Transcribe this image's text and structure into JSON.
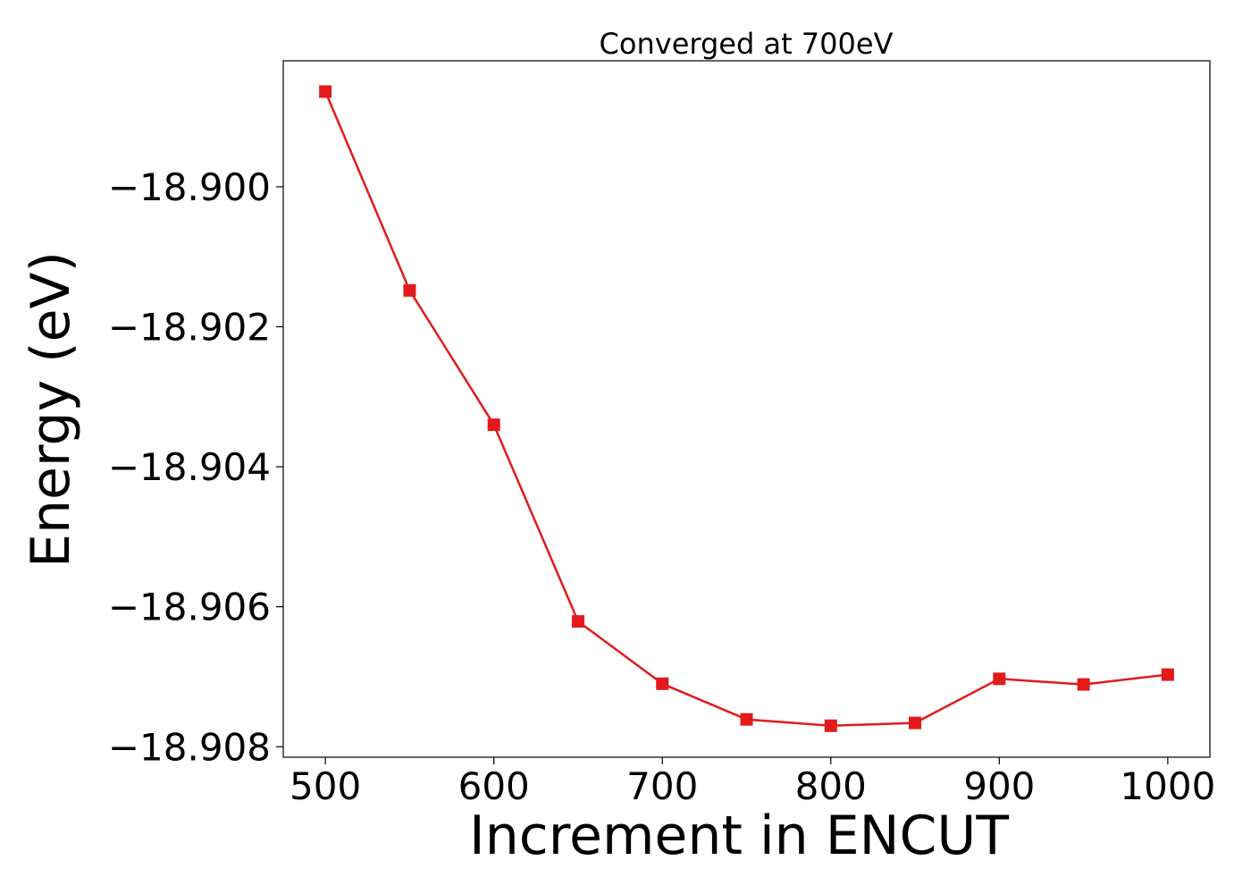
{
  "chart_data": {
    "type": "line",
    "title": "Converged at 700eV",
    "xlabel": "Increment in ENCUT",
    "ylabel": "Energy (eV)",
    "xlim": [
      475,
      1025
    ],
    "ylim": [
      -18.90815,
      -18.8982
    ],
    "x_ticks": [
      500,
      600,
      700,
      800,
      900,
      1000
    ],
    "y_ticks": [
      -18.9,
      -18.902,
      -18.904,
      -18.906,
      -18.908
    ],
    "y_tick_labels": [
      "−18.900",
      "−18.902",
      "−18.904",
      "−18.906",
      "−18.908"
    ],
    "grid": false,
    "series": [
      {
        "marker": "square",
        "color": "#e31a1c",
        "x": [
          500,
          550,
          600,
          650,
          700,
          750,
          800,
          850,
          900,
          950,
          1000
        ],
        "y": [
          -18.89864,
          -18.90148,
          -18.9034,
          -18.90621,
          -18.9071,
          -18.90761,
          -18.9077,
          -18.90766,
          -18.90703,
          -18.90711,
          -18.90697
        ]
      }
    ]
  }
}
